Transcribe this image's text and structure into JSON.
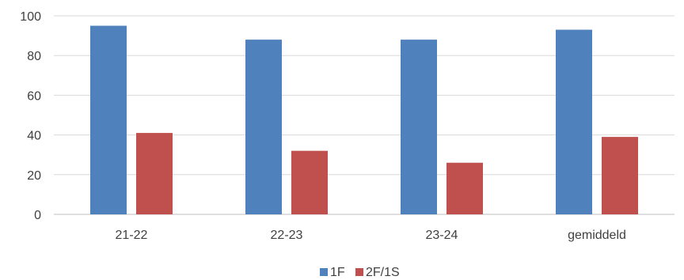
{
  "chart_data": {
    "type": "bar",
    "categories": [
      "21-22",
      "22-23",
      "23-24",
      "gemiddeld"
    ],
    "series": [
      {
        "name": "1F",
        "values": [
          95,
          88,
          88,
          93
        ],
        "color": "#4f81bd"
      },
      {
        "name": "2F/1S",
        "values": [
          41,
          32,
          26,
          39
        ],
        "color": "#c0504d"
      }
    ],
    "ylim": [
      0,
      100
    ],
    "yticks": [
      0,
      20,
      40,
      60,
      80,
      100
    ],
    "grid": true,
    "legend_position": "bottom"
  }
}
